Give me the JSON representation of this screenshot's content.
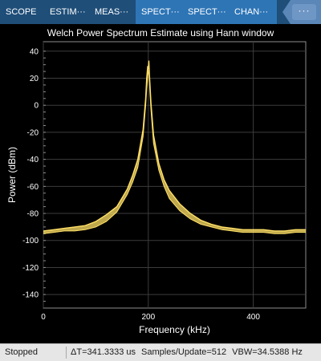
{
  "toolstrip": {
    "tabs": [
      {
        "label": "SCOPE",
        "active": false
      },
      {
        "label": "ESTIM···",
        "active": false
      },
      {
        "label": "MEAS···",
        "active": false
      },
      {
        "label": "SPECT···",
        "active": true
      },
      {
        "label": "SPECT···",
        "active": true
      },
      {
        "label": "CHAN···",
        "active": true
      }
    ],
    "overflow_label": "···"
  },
  "chart_data": {
    "type": "line",
    "title": "Welch Power Spectrum Estimate using Hann window",
    "xlabel": "Frequency (kHz)",
    "ylabel": "Power (dBm)",
    "xlim": [
      0,
      500
    ],
    "ylim": [
      -150,
      47
    ],
    "xticks": [
      0,
      200,
      400
    ],
    "yticks": [
      40,
      20,
      0,
      -20,
      -40,
      -60,
      -80,
      -100,
      -120,
      -140
    ],
    "grid": true,
    "background": "#000000",
    "series_color": "#ffe066",
    "series": [
      {
        "x": [
          0,
          20,
          40,
          60,
          80,
          100,
          120,
          140,
          160,
          170,
          180,
          190,
          195,
          197,
          199,
          200,
          201,
          202,
          203,
          205,
          210,
          220,
          230,
          240,
          260,
          280,
          300,
          320,
          340,
          360,
          380,
          400,
          420,
          440,
          460,
          480,
          500
        ],
        "y": [
          -93,
          -92,
          -91,
          -90,
          -89,
          -86,
          -81,
          -75,
          -62,
          -52,
          -40,
          -18,
          5,
          20,
          29,
          27,
          33,
          24,
          16,
          2,
          -22,
          -43,
          -55,
          -63,
          -73,
          -80,
          -85,
          -88,
          -90,
          -91,
          -92,
          -92,
          -92,
          -93,
          -93,
          -92,
          -92
        ],
        "band_low": [
          -95,
          -94,
          -93,
          -93,
          -92,
          -90,
          -86,
          -79,
          -66,
          -57,
          -46,
          -23,
          0,
          12,
          22,
          24,
          26,
          18,
          10,
          -3,
          -28,
          -48,
          -60,
          -69,
          -78,
          -84,
          -88,
          -90,
          -92,
          -93,
          -94,
          -94,
          -94,
          -95,
          -95,
          -94,
          -94
        ]
      }
    ]
  },
  "status": {
    "state": "Stopped",
    "delta_t": "ΔT=341.3333 us",
    "samples": "Samples/Update=512",
    "vbw": "VBW=34.5388 Hz"
  }
}
